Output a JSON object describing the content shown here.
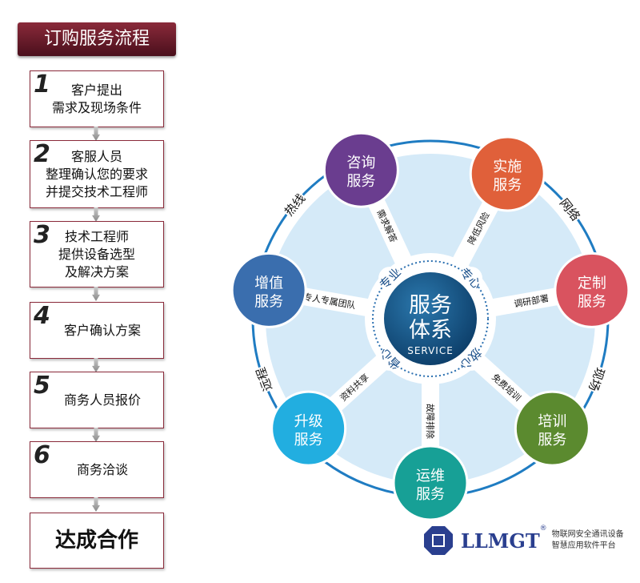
{
  "title": "订购服务流程",
  "steps": [
    {
      "num": "1",
      "lines": [
        "客户提出",
        "需求及现场条件"
      ]
    },
    {
      "num": "2",
      "lines": [
        "客服人员",
        "整理确认您的要求",
        "并提交技术工程师"
      ]
    },
    {
      "num": "3",
      "lines": [
        "技术工程师",
        "提供设备选型",
        "及解决方案"
      ]
    },
    {
      "num": "4",
      "lines": [
        "客户确认方案"
      ]
    },
    {
      "num": "5",
      "lines": [
        "商务人员报价"
      ]
    },
    {
      "num": "6",
      "lines": [
        "商务洽谈"
      ]
    }
  ],
  "final": "达成合作",
  "center": {
    "line1": "服务",
    "line2": "体系",
    "sub": "SERVICE"
  },
  "inner_ring": [
    "专业",
    "专心",
    "省心",
    "放心"
  ],
  "outer_ring": [
    "热线",
    "网络",
    "远程",
    "现场"
  ],
  "services": [
    {
      "l1": "咨询",
      "l2": "服务",
      "spoke": "需求解答",
      "color": "#6a3d8f"
    },
    {
      "l1": "实施",
      "l2": "服务",
      "spoke": "降低风险",
      "color": "#e0603a"
    },
    {
      "l1": "定制",
      "l2": "服务",
      "spoke": "调研部署",
      "color": "#d9535f"
    },
    {
      "l1": "培训",
      "l2": "服务",
      "spoke": "免费培训",
      "color": "#5b8a2f"
    },
    {
      "l1": "运维",
      "l2": "服务",
      "spoke": "故障排除",
      "color": "#17a096"
    },
    {
      "l1": "升级",
      "l2": "服务",
      "spoke": "资料共享",
      "color": "#22aee0"
    },
    {
      "l1": "增值",
      "l2": "服务",
      "spoke": "专人专属团队",
      "color": "#3a6eae"
    }
  ],
  "logo": {
    "brand": "LLMGT",
    "reg": "®",
    "tag1": "物联网安全通讯设备",
    "tag2": "智慧应用软件平台",
    "color": "#2a3f8f"
  }
}
